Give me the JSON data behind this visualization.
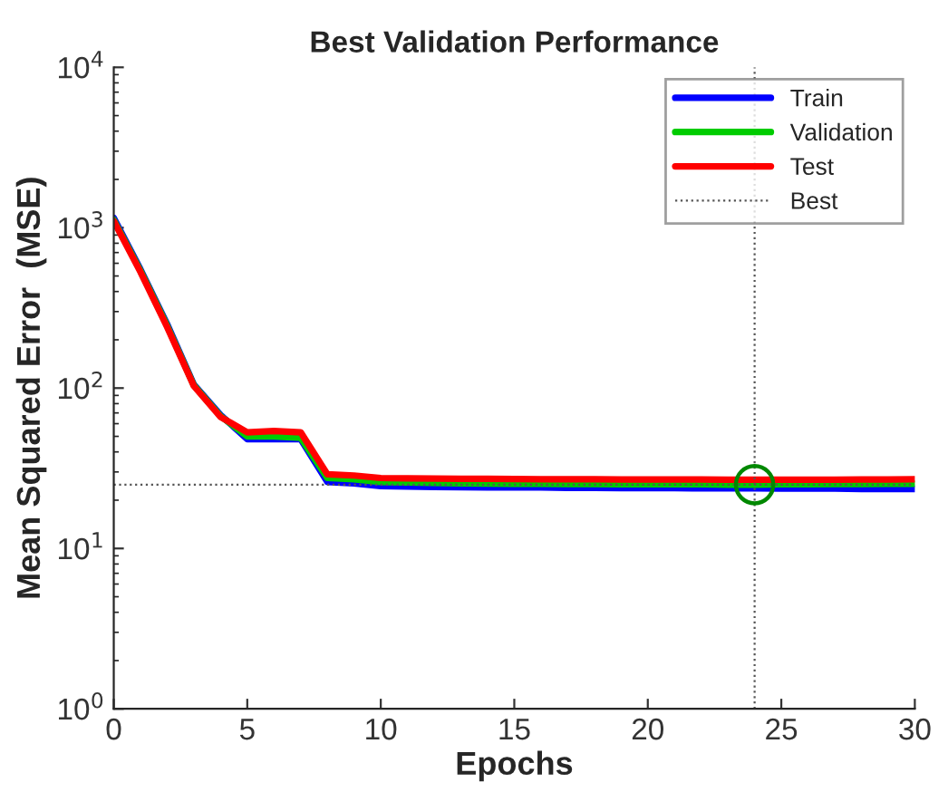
{
  "chart_data": {
    "type": "line",
    "title": "Best Validation Performance",
    "xlabel": "Epochs",
    "ylabel": "Mean Squared Error  (MSE)",
    "x": [
      0,
      1,
      2,
      3,
      4,
      5,
      6,
      7,
      8,
      9,
      10,
      11,
      12,
      13,
      14,
      15,
      16,
      17,
      18,
      19,
      20,
      21,
      22,
      23,
      24,
      25,
      26,
      27,
      28,
      29,
      30
    ],
    "series": [
      {
        "name": "Train",
        "color": "#0000ff",
        "values": [
          1150,
          550,
          250,
          105,
          68,
          48,
          48,
          48,
          26,
          25.5,
          24.5,
          24.3,
          24.2,
          24.1,
          24,
          24,
          24,
          23.9,
          23.9,
          23.8,
          23.8,
          23.8,
          23.7,
          23.7,
          23.7,
          23.6,
          23.6,
          23.6,
          23.5,
          23.5,
          23.5
        ]
      },
      {
        "name": "Validation",
        "color": "#00cc00",
        "values": [
          1120,
          540,
          245,
          104,
          67,
          50,
          50,
          49,
          27.5,
          27,
          26,
          25.8,
          25.6,
          25.5,
          25.4,
          25.3,
          25.3,
          25.2,
          25.2,
          25.1,
          25.1,
          25.1,
          25.1,
          25,
          25,
          25.1,
          25.1,
          25.2,
          25.2,
          25.3,
          25.3
        ]
      },
      {
        "name": "Test",
        "color": "#ff0000",
        "values": [
          1100,
          530,
          240,
          103,
          66,
          53,
          54,
          53,
          29,
          28.5,
          27.5,
          27.4,
          27.3,
          27.2,
          27.2,
          27.1,
          27,
          27,
          27,
          26.9,
          26.9,
          26.9,
          26.9,
          26.8,
          26.8,
          26.8,
          26.8,
          26.8,
          26.9,
          26.9,
          27
        ]
      },
      {
        "type": "scatter",
        "color": "#008800",
        "x": [
          24
        ],
        "values": [
          25
        ],
        "marker": "circle"
      }
    ],
    "ref_lines": [
      {
        "axis": "x",
        "value": 24,
        "label": "Best",
        "color": "#555555",
        "line_style": "dotted"
      },
      {
        "axis": "y",
        "value": 25,
        "color": "#555555",
        "line_style": "dotted"
      }
    ],
    "log": "y",
    "xlim": [
      0,
      30
    ],
    "ylim": [
      1,
      10000
    ],
    "xticks": [
      0,
      5,
      10,
      15,
      20,
      25,
      30
    ],
    "yticks": [
      {
        "value": 1,
        "label": "10$^{0}$"
      },
      {
        "value": 10,
        "label": "10$^{1}$"
      },
      {
        "value": 100,
        "label": "10$^{2}$"
      },
      {
        "value": 1000,
        "label": "10$^{3}$"
      },
      {
        "value": 10000,
        "label": "10$^{4}$"
      }
    ],
    "grid": false,
    "legend": "top right"
  }
}
